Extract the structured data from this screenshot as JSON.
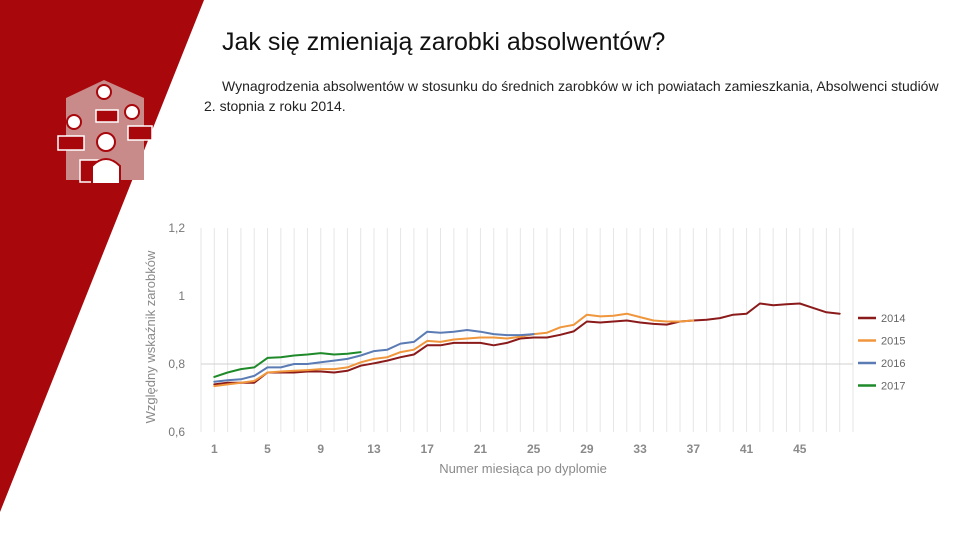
{
  "slide": {
    "title": "Jak się zmieniają zarobki absolwentów?",
    "subtitle": "Wynagrodzenia absolwentów w stosunku do średnich zarobków w ich powiatach zamieszkania, Absolwenci studiów 2. stopnia z roku 2014.",
    "accent_color": "#a8070c",
    "logo_icon": "graduates-money-icon"
  },
  "chart_data": {
    "type": "line",
    "xlabel": "Numer miesiąca po dyplomie",
    "ylabel": "Względny wskaźnik zarobków",
    "xlim": [
      0,
      49
    ],
    "ylim": [
      0.6,
      1.2
    ],
    "x_ticks": [
      1,
      5,
      9,
      13,
      17,
      21,
      25,
      29,
      33,
      37,
      41,
      45
    ],
    "y_ticks": [
      {
        "value": 0.6,
        "label": "0,6"
      },
      {
        "value": 0.8,
        "label": "0,8"
      },
      {
        "value": 1.0,
        "label": "1"
      },
      {
        "value": 1.2,
        "label": "1,2"
      }
    ],
    "grid": true,
    "legend_position": "right",
    "series": [
      {
        "name": "2014",
        "color": "#8b1a1a",
        "x": [
          1,
          2,
          3,
          4,
          5,
          6,
          7,
          8,
          9,
          10,
          11,
          12,
          13,
          14,
          15,
          16,
          17,
          18,
          19,
          20,
          21,
          22,
          23,
          24,
          25,
          26,
          27,
          28,
          29,
          30,
          31,
          32,
          33,
          34,
          35,
          36,
          37,
          38,
          39,
          40,
          41,
          42,
          43,
          44,
          45,
          46,
          47,
          48
        ],
        "y": [
          0.74,
          0.745,
          0.745,
          0.745,
          0.775,
          0.775,
          0.775,
          0.778,
          0.778,
          0.775,
          0.78,
          0.795,
          0.802,
          0.81,
          0.82,
          0.828,
          0.855,
          0.855,
          0.862,
          0.862,
          0.862,
          0.855,
          0.862,
          0.875,
          0.878,
          0.878,
          0.886,
          0.896,
          0.925,
          0.922,
          0.925,
          0.928,
          0.922,
          0.918,
          0.916,
          0.925,
          0.928,
          0.93,
          0.935,
          0.945,
          0.948,
          0.978,
          0.973,
          0.976,
          0.978,
          0.965,
          0.952,
          0.948
        ]
      },
      {
        "name": "2015",
        "color": "#f0963c",
        "x": [
          1,
          2,
          3,
          4,
          5,
          6,
          7,
          8,
          9,
          10,
          11,
          12,
          13,
          14,
          15,
          16,
          17,
          18,
          19,
          20,
          21,
          22,
          23,
          24,
          25,
          26,
          27,
          28,
          29,
          30,
          31,
          32,
          33,
          34,
          35,
          36,
          37
        ],
        "y": [
          0.735,
          0.74,
          0.745,
          0.75,
          0.775,
          0.778,
          0.78,
          0.782,
          0.785,
          0.785,
          0.79,
          0.805,
          0.815,
          0.82,
          0.835,
          0.842,
          0.868,
          0.865,
          0.872,
          0.875,
          0.878,
          0.878,
          0.875,
          0.88,
          0.888,
          0.892,
          0.908,
          0.915,
          0.945,
          0.94,
          0.942,
          0.948,
          0.938,
          0.928,
          0.925,
          0.925,
          0.928
        ]
      },
      {
        "name": "2016",
        "color": "#5b7bb5",
        "x": [
          1,
          2,
          3,
          4,
          5,
          6,
          7,
          8,
          9,
          10,
          11,
          12,
          13,
          14,
          15,
          16,
          17,
          18,
          19,
          20,
          21,
          22,
          23,
          24,
          25
        ],
        "y": [
          0.748,
          0.752,
          0.755,
          0.765,
          0.79,
          0.79,
          0.8,
          0.8,
          0.805,
          0.81,
          0.815,
          0.825,
          0.838,
          0.842,
          0.86,
          0.865,
          0.895,
          0.892,
          0.895,
          0.9,
          0.895,
          0.888,
          0.885,
          0.885,
          0.888
        ]
      },
      {
        "name": "2017",
        "color": "#1f8a2a",
        "x": [
          1,
          2,
          3,
          4,
          5,
          6,
          7,
          8,
          9,
          10,
          11,
          12
        ],
        "y": [
          0.762,
          0.775,
          0.785,
          0.79,
          0.818,
          0.82,
          0.825,
          0.828,
          0.832,
          0.828,
          0.83,
          0.835
        ]
      }
    ]
  }
}
